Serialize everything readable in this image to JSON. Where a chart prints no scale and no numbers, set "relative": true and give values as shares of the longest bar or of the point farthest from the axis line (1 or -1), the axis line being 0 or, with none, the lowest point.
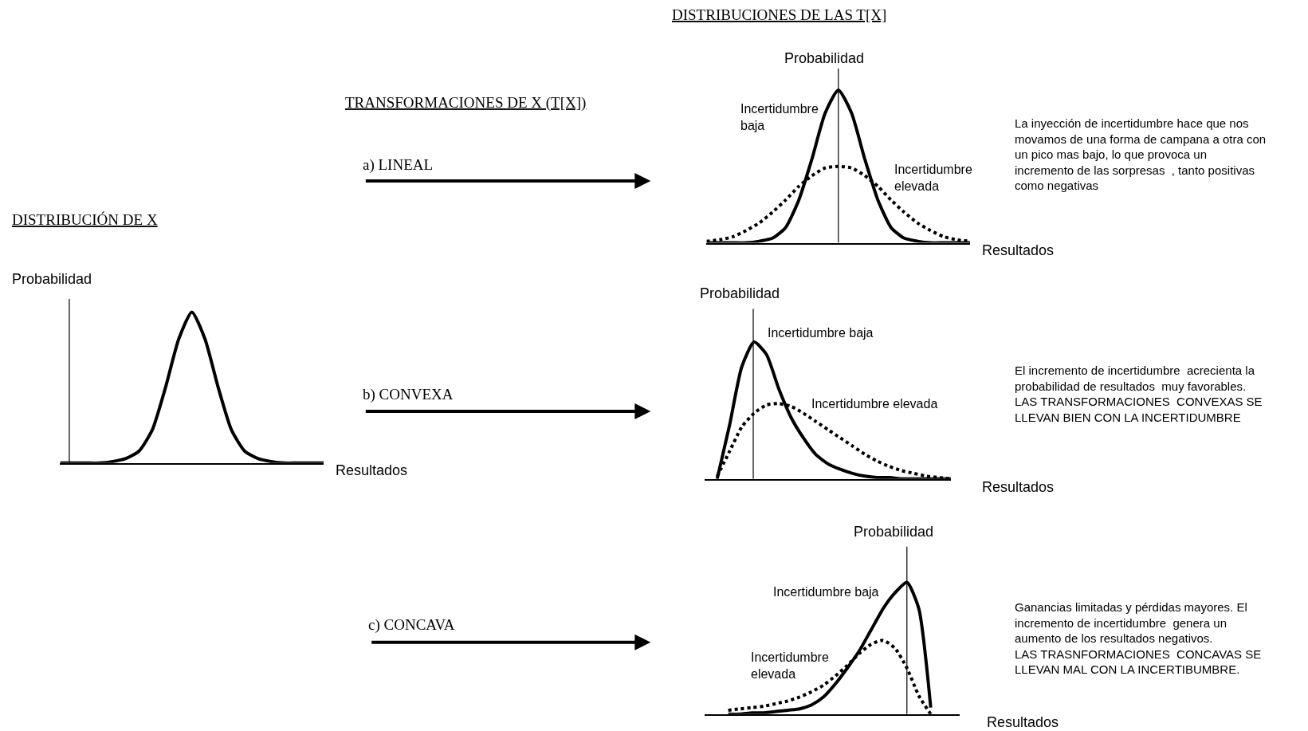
{
  "chart_data": [
    {
      "type": "line",
      "relative": true,
      "legend": false,
      "title": "DISTRIBUCIÓN DE X",
      "ylabel": "Probabilidad",
      "xlabel": "Resultados",
      "categories": [
        null,
        null,
        null,
        null,
        null,
        null,
        null,
        null,
        null,
        null,
        null,
        null,
        null,
        null,
        null,
        null,
        null,
        null,
        null,
        null,
        null
      ],
      "series": [
        {
          "color": "#000000",
          "line_style": "solid",
          "values": [
            0,
            0,
            0,
            0,
            0.01,
            0.03,
            0.08,
            0.22,
            0.5,
            0.82,
            1,
            0.82,
            0.5,
            0.22,
            0.08,
            0.03,
            0.01,
            0,
            0,
            0,
            0
          ]
        }
      ]
    },
    {
      "type": "line",
      "relative": true,
      "legend": false,
      "title": "DISTRIBUCIONES DE LAS T[X]",
      "ylabel": "Probabilidad",
      "xlabel": "Resultados",
      "annotations": [
        "TRANSFORMACIONES DE X (T[X])",
        "a) LINEAL",
        "La inyección de incertidumbre hace que nos\nmovamos de una forma de campana a otra con\nun pico mas bajo, lo que provoca un\nincremento de las sorpresas  , tanto positivas\ncomo negativas"
      ],
      "categories": [
        null,
        null,
        null,
        null,
        null,
        null,
        null,
        null,
        null,
        null,
        null,
        null,
        null,
        null,
        null,
        null,
        null,
        null,
        null,
        null,
        null
      ],
      "series": [
        {
          "name": "Incertidumbre baja",
          "color": "#000000",
          "line_style": "solid",
          "values": [
            0,
            0,
            0,
            0,
            0.01,
            0.03,
            0.1,
            0.28,
            0.55,
            0.85,
            1,
            0.85,
            0.55,
            0.28,
            0.1,
            0.03,
            0.01,
            0,
            0,
            0,
            0
          ]
        },
        {
          "name": "Incertidumbre elevada",
          "color": "#000000",
          "line_style": "dotted",
          "values": [
            0.01,
            0.02,
            0.04,
            0.08,
            0.13,
            0.2,
            0.28,
            0.37,
            0.44,
            0.49,
            0.5,
            0.49,
            0.44,
            0.37,
            0.28,
            0.2,
            0.13,
            0.08,
            0.04,
            0.02,
            0.01
          ]
        }
      ]
    },
    {
      "type": "line",
      "relative": true,
      "legend": false,
      "ylabel": "Probabilidad",
      "xlabel": "Resultados",
      "annotations": [
        "b) CONVEXA",
        "El incremento de incertidumbre  acrecienta la\nprobabilidad de resultados  muy favorables.\nLAS TRANSFORMACIONES  CONVEXAS SE\nLLEVAN BIEN CON LA INCERTIDUMBRE"
      ],
      "categories": [
        null,
        null,
        null,
        null,
        null,
        null,
        null,
        null,
        null,
        null,
        null,
        null,
        null,
        null,
        null,
        null,
        null,
        null,
        null,
        null,
        null
      ],
      "series": [
        {
          "name": "Incertidumbre baja",
          "color": "#000000",
          "line_style": "solid",
          "values": [
            null,
            0,
            0.39,
            0.82,
            1,
            0.91,
            0.66,
            0.45,
            0.3,
            0.18,
            0.11,
            0.07,
            0.04,
            0.02,
            0.01,
            0.01,
            0,
            0,
            0,
            0,
            0
          ]
        },
        {
          "name": "Incertidumbre elevada",
          "color": "#000000",
          "line_style": "dotted",
          "values": [
            null,
            0.02,
            0.2,
            0.38,
            0.48,
            0.54,
            0.55,
            0.53,
            0.48,
            0.42,
            0.36,
            0.3,
            0.24,
            0.18,
            0.13,
            0.09,
            0.06,
            0.04,
            0.02,
            0.01,
            0
          ]
        }
      ]
    },
    {
      "type": "line",
      "relative": true,
      "legend": false,
      "ylabel": "Probabilidad",
      "xlabel": "Resultados",
      "annotations": [
        "c) CONCAVA",
        "Ganancias limitadas y pérdidas mayores. El\nincremento de incertidumbre  genera un\naumento de los resultados negativos.\nLAS TRASNFORMACIONES  CONCAVAS SE\nLLEVAN MAL CON LA INCERTIBUMBRE."
      ],
      "categories": [
        null,
        null,
        null,
        null,
        null,
        null,
        null,
        null,
        null,
        null,
        null,
        null,
        null,
        null,
        null,
        null,
        null,
        null,
        null,
        null,
        null
      ],
      "series": [
        {
          "name": "Incertidumbre baja",
          "color": "#000000",
          "line_style": "solid",
          "values": [
            0,
            0,
            0.01,
            0.01,
            0.02,
            0.03,
            0.04,
            0.07,
            0.13,
            0.23,
            0.35,
            0.48,
            0.64,
            0.8,
            0.92,
            1,
            0.8,
            0.05,
            null,
            null,
            null
          ]
        },
        {
          "name": "Incertidumbre elevada",
          "color": "#000000",
          "line_style": "dotted",
          "values": [
            0.03,
            0.04,
            0.05,
            0.06,
            0.08,
            0.1,
            0.13,
            0.17,
            0.22,
            0.29,
            0.37,
            0.46,
            0.53,
            0.56,
            0.5,
            0.35,
            0.14,
            0,
            null,
            null,
            null
          ]
        }
      ]
    }
  ]
}
